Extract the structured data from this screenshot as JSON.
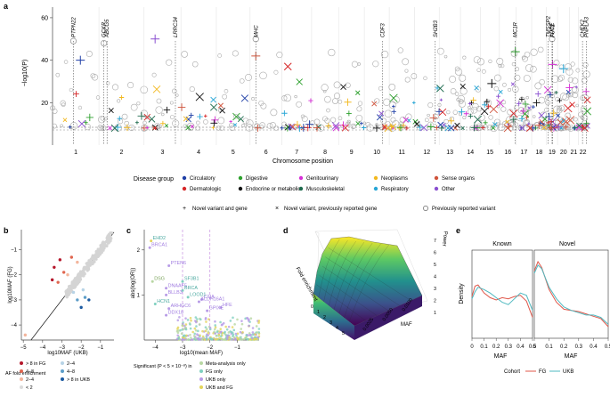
{
  "colors": {
    "circulatory": "#1f3fa6",
    "dermatologic": "#d62728",
    "digestive": "#2ca02c",
    "endocrine": "#111111",
    "genitourinary": "#d62fd6",
    "musculoskeletal": "#1e6b4e",
    "neoplasms": "#f2b81f",
    "respiratory": "#27a6d6",
    "sense_organs": "#d0533b",
    "other": "#8a4fd0",
    "known_grey": "#aaaaaa",
    "fg": "#e0574a",
    "ukb": "#4fb9c0"
  },
  "chart_data": [
    {
      "panel": "a",
      "type": "scatter",
      "ylabel": "−log10(P)",
      "xlabel": "Chromosome position",
      "yticks": [
        20,
        40,
        60
      ],
      "ylim": [
        0,
        65
      ],
      "categories": [
        "1",
        "2",
        "3",
        "4",
        "5",
        "6",
        "7",
        "8",
        "9",
        "10",
        "11",
        "12",
        "13",
        "14",
        "15",
        "16",
        "17",
        "18",
        "19",
        "20",
        "21",
        "22"
      ],
      "chrom_lengths": [
        249,
        242,
        198,
        190,
        181,
        171,
        159,
        145,
        138,
        134,
        135,
        133,
        114,
        107,
        102,
        90,
        83,
        80,
        59,
        64,
        47,
        51
      ],
      "gene_labels": [
        {
          "gene": "PTPN22",
          "chrom": 1,
          "pos": 0.45
        },
        {
          "gene": "GCKR",
          "chrom": 2,
          "pos": 0.11
        },
        {
          "gene": "ABCG5",
          "chrom": 2,
          "pos": 0.18
        },
        {
          "gene": "LRRC34",
          "chrom": 3,
          "pos": 0.85
        },
        {
          "gene": "MHC",
          "chrom": 6,
          "pos": 0.18
        },
        {
          "gene": "CDF3",
          "chrom": 10,
          "pos": 0.72
        },
        {
          "gene": "SH2B3",
          "chrom": 12,
          "pos": 0.84
        },
        {
          "gene": "MC1R",
          "chrom": 16,
          "pos": 0.95
        },
        {
          "gene": "TMSSP2",
          "chrom": 19,
          "pos": 0.15
        },
        {
          "gene": "APOE",
          "chrom": 19,
          "pos": 0.5
        },
        {
          "gene": "FUT2",
          "chrom": 19,
          "pos": 0.55
        },
        {
          "gene": "CHEK2",
          "chrom": 22,
          "pos": 0.45
        },
        {
          "gene": "PNPLA3",
          "chrom": 22,
          "pos": 0.85
        }
      ],
      "legend_title": "Disease group",
      "legend_groups": [
        "Circulatory",
        "Dermatologic",
        "Digestive",
        "Endocrine or metabolic",
        "Genitourinary",
        "Musculoskeletal",
        "Neoplasms",
        "Respiratory",
        "Sense organs",
        "Other"
      ],
      "marker_legend": [
        "Novel variant and gene",
        "Novel variant, previously reported gene",
        "Previously reported variant"
      ]
    },
    {
      "panel": "b",
      "type": "scatter",
      "xlabel": "log10MAF (UKB)",
      "ylabel": "log10MAF (FG)",
      "xticks": [
        -5,
        -4,
        -3,
        -2,
        -1
      ],
      "yticks": [
        -1,
        -2,
        -3,
        -4
      ],
      "xlim": [
        -5.1,
        -0.3
      ],
      "ylim": [
        -4.6,
        -0.2
      ],
      "legend_title": "AF fold enrichment",
      "legend": [
        "> 8 in FG",
        "4–8",
        "2–4",
        "< 2",
        "2–4",
        "4–8",
        "> 8 in UKB"
      ],
      "legend_colors": [
        "#b5172b",
        "#e0664f",
        "#f3b59c",
        "#dcdcdc",
        "#b7d3e6",
        "#5c9dc8",
        "#1b5aa1"
      ]
    },
    {
      "panel": "c",
      "type": "scatter",
      "xlabel": "log10(mean MAF)",
      "ylabel": "abs(log(OR))",
      "xticks": [
        -4,
        -3,
        -2,
        -1
      ],
      "yticks": [
        1,
        2
      ],
      "xlim": [
        -4.4,
        -0.2
      ],
      "ylim": [
        0,
        2.45
      ],
      "annotations": [
        "EHD2",
        "BRCA1",
        "PTEN6",
        "DSG",
        "DNAAF5",
        "BLLB3",
        "SF3B1",
        "BRCA",
        "CTIA",
        "HCN1",
        "ARHGC6",
        "DDX18",
        "LOOD1",
        "ALDH16A1",
        "HFE",
        "GPIXE"
      ],
      "legend_title": "Significant (P < 5 × 10⁻⁸) in",
      "legend": [
        "Meta-analysis only",
        "FG only",
        "UKB only",
        "UKB and FG"
      ],
      "legend_colors": [
        "#b8d7a3",
        "#7fd0c0",
        "#b79be6",
        "#e3d45a"
      ]
    },
    {
      "panel": "d",
      "type": "surface",
      "xlabel": "MAF",
      "ylabel": "Fold enrichment",
      "zlabel": "Power",
      "xticks": [
        "0.0025",
        "0.0050",
        "0.0100"
      ],
      "yticks": [
        "0",
        "1",
        "2",
        "3",
        "4",
        "5"
      ],
      "zticks": [
        "1",
        "2",
        "3",
        "4",
        "5",
        "6",
        "7"
      ],
      "zlim": [
        0,
        7
      ]
    },
    {
      "panel": "e",
      "type": "line",
      "ylabel": "Density",
      "xlabel": "MAF",
      "facets": [
        "Known",
        "Novel"
      ],
      "xticks": [
        0,
        0.1,
        0.2,
        0.3,
        0.4,
        0.5
      ],
      "xlim": [
        0,
        0.5
      ],
      "ylim": [
        0,
        3.8
      ],
      "series": [
        {
          "name": "FG",
          "facet": "Known",
          "x": [
            0,
            0.025,
            0.05,
            0.1,
            0.15,
            0.2,
            0.25,
            0.3,
            0.35,
            0.4,
            0.45,
            0.5
          ],
          "values": [
            1.8,
            2.25,
            2.3,
            1.95,
            1.75,
            1.65,
            1.75,
            1.7,
            1.8,
            1.85,
            1.6,
            0.9
          ]
        },
        {
          "name": "UKB",
          "facet": "Known",
          "x": [
            0,
            0.025,
            0.05,
            0.1,
            0.15,
            0.2,
            0.25,
            0.3,
            0.35,
            0.4,
            0.45,
            0.5
          ],
          "values": [
            1.7,
            2.0,
            2.2,
            2.1,
            1.95,
            1.75,
            1.55,
            1.45,
            1.7,
            1.95,
            1.85,
            1.2
          ]
        },
        {
          "name": "FG",
          "facet": "Novel",
          "x": [
            0,
            0.025,
            0.05,
            0.1,
            0.15,
            0.2,
            0.25,
            0.3,
            0.35,
            0.4,
            0.45,
            0.5
          ],
          "values": [
            2.9,
            3.3,
            3.05,
            2.1,
            1.55,
            1.25,
            1.2,
            1.15,
            1.05,
            0.95,
            0.85,
            0.5
          ]
        },
        {
          "name": "UKB",
          "facet": "Novel",
          "x": [
            0,
            0.025,
            0.05,
            0.1,
            0.15,
            0.2,
            0.25,
            0.3,
            0.35,
            0.4,
            0.45,
            0.5
          ],
          "values": [
            2.8,
            3.15,
            3.0,
            2.2,
            1.7,
            1.35,
            1.2,
            1.1,
            1.0,
            1.0,
            0.9,
            0.6
          ]
        }
      ],
      "legend_title": "Cohort"
    }
  ]
}
